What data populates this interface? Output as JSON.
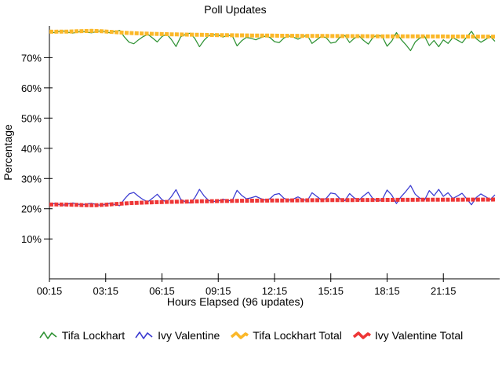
{
  "title": "Poll Updates",
  "chart_data": {
    "type": "line",
    "title": "Poll Updates",
    "xlabel": "Hours Elapsed (96 updates)",
    "ylabel": "Percentage",
    "grid": false,
    "legend_position": "bottom",
    "x_points": 96,
    "x_interval_minutes": 15,
    "x_tick_labels": [
      "00:15",
      "03:15",
      "06:15",
      "09:15",
      "12:15",
      "15:15",
      "18:15",
      "21:15"
    ],
    "x_tick_indices": [
      0,
      12,
      24,
      36,
      48,
      60,
      72,
      84
    ],
    "y_tick_labels": [
      "10%",
      "20%",
      "30%",
      "40%",
      "50%",
      "60%",
      "70%"
    ],
    "y_tick_values": [
      10,
      20,
      30,
      40,
      50,
      60,
      70
    ],
    "ylim": [
      -3.2,
      80.5
    ],
    "series": [
      {
        "id": "tifa-lockhart",
        "name": "Tifa Lockhart",
        "color": "#2f9234",
        "style": "thin",
        "values": [
          78.5,
          78.3,
          78.6,
          78.8,
          78.4,
          78.1,
          78.5,
          78.7,
          78.4,
          78.2,
          78.6,
          78.9,
          78.5,
          78.2,
          78.7,
          79.0,
          76.8,
          75.1,
          74.6,
          75.9,
          77.0,
          77.7,
          76.5,
          75.2,
          77.0,
          77.8,
          76.0,
          73.7,
          76.9,
          77.7,
          78.1,
          76.4,
          73.6,
          75.8,
          77.3,
          77.6,
          77.5,
          76.8,
          77.4,
          77.2,
          73.9,
          75.6,
          76.7,
          76.4,
          75.9,
          76.6,
          77.1,
          76.7,
          75.3,
          75.0,
          76.5,
          77.2,
          76.8,
          76.1,
          76.9,
          77.4,
          74.7,
          75.9,
          77.1,
          76.6,
          74.8,
          75.1,
          76.8,
          77.3,
          75.0,
          76.4,
          77.2,
          75.7,
          74.5,
          76.7,
          77.5,
          76.9,
          73.8,
          75.5,
          78.3,
          76.0,
          74.3,
          72.3,
          75.2,
          76.5,
          77.1,
          74.0,
          75.7,
          73.6,
          75.9,
          74.7,
          76.6,
          75.8,
          74.9,
          76.8,
          78.7,
          76.3,
          75.1,
          76.0,
          77.0,
          75.4
        ]
      },
      {
        "id": "ivy-valentine",
        "name": "Ivy Valentine",
        "color": "#3b3bd1",
        "style": "thin",
        "values": [
          21.5,
          21.7,
          21.4,
          21.2,
          21.6,
          21.9,
          21.5,
          21.3,
          21.6,
          21.8,
          21.4,
          21.1,
          21.5,
          21.8,
          21.3,
          21.0,
          23.2,
          24.9,
          25.4,
          24.1,
          23.0,
          22.3,
          23.5,
          24.8,
          23.0,
          22.2,
          24.0,
          26.3,
          23.1,
          22.3,
          21.9,
          23.6,
          26.4,
          24.2,
          22.7,
          22.4,
          22.5,
          23.2,
          22.6,
          22.8,
          26.1,
          24.4,
          23.3,
          23.6,
          24.1,
          23.4,
          22.9,
          23.3,
          24.7,
          25.0,
          23.5,
          22.8,
          23.2,
          23.9,
          23.1,
          22.6,
          25.3,
          24.1,
          22.9,
          23.4,
          25.2,
          24.9,
          23.2,
          22.7,
          25.0,
          23.6,
          22.8,
          24.3,
          25.5,
          23.3,
          22.5,
          23.1,
          26.2,
          24.5,
          21.7,
          24.0,
          25.7,
          27.7,
          24.8,
          23.5,
          22.9,
          26.0,
          24.3,
          26.4,
          24.1,
          25.3,
          23.4,
          24.2,
          25.1,
          23.2,
          21.3,
          23.7,
          24.9,
          24.0,
          23.0,
          24.6
        ]
      },
      {
        "id": "tifa-lockhart-total",
        "name": "Tifa Lockhart Total",
        "color": "#fbb829",
        "style": "thick",
        "values": [
          78.6,
          78.58,
          78.6,
          78.62,
          78.64,
          78.68,
          78.72,
          78.78,
          78.82,
          78.85,
          78.82,
          78.75,
          78.65,
          78.55,
          78.45,
          78.35,
          78.25,
          78.17,
          78.1,
          78.04,
          77.98,
          77.93,
          77.88,
          77.84,
          77.8,
          77.76,
          77.73,
          77.7,
          77.67,
          77.64,
          77.61,
          77.58,
          77.55,
          77.53,
          77.51,
          77.49,
          77.47,
          77.45,
          77.43,
          77.41,
          77.39,
          77.37,
          77.36,
          77.34,
          77.33,
          77.31,
          77.3,
          77.29,
          77.28,
          77.26,
          77.25,
          77.24,
          77.23,
          77.22,
          77.21,
          77.2,
          77.19,
          77.18,
          77.17,
          77.16,
          77.15,
          77.15,
          77.14,
          77.13,
          77.12,
          77.12,
          77.11,
          77.1,
          77.1,
          77.09,
          77.08,
          77.08,
          77.07,
          77.07,
          77.06,
          77.05,
          77.05,
          77.04,
          77.04,
          77.03,
          77.03,
          77.02,
          77.02,
          77.01,
          77.01,
          77.0,
          77.0,
          76.99,
          76.99,
          76.98,
          76.98,
          76.97,
          76.97,
          76.96,
          76.96,
          76.95
        ]
      },
      {
        "id": "ivy-valentine-total",
        "name": "Ivy Valentine Total",
        "color": "#ee3636",
        "style": "thick",
        "values": [
          21.4,
          21.42,
          21.4,
          21.38,
          21.36,
          21.32,
          21.28,
          21.22,
          21.18,
          21.15,
          21.18,
          21.25,
          21.35,
          21.45,
          21.55,
          21.65,
          21.75,
          21.83,
          21.9,
          21.96,
          22.02,
          22.07,
          22.12,
          22.16,
          22.2,
          22.24,
          22.27,
          22.3,
          22.33,
          22.36,
          22.39,
          22.42,
          22.45,
          22.47,
          22.49,
          22.51,
          22.53,
          22.55,
          22.57,
          22.59,
          22.61,
          22.63,
          22.64,
          22.66,
          22.67,
          22.69,
          22.7,
          22.71,
          22.72,
          22.74,
          22.75,
          22.76,
          22.77,
          22.78,
          22.79,
          22.8,
          22.81,
          22.82,
          22.83,
          22.84,
          22.85,
          22.85,
          22.86,
          22.87,
          22.88,
          22.88,
          22.89,
          22.9,
          22.9,
          22.91,
          22.92,
          22.92,
          22.93,
          22.93,
          22.94,
          22.95,
          22.95,
          22.96,
          22.96,
          22.97,
          22.97,
          22.98,
          22.98,
          22.99,
          22.99,
          23.0,
          23.0,
          23.01,
          23.01,
          23.02,
          23.02,
          23.03,
          23.03,
          23.04,
          23.04,
          23.05
        ]
      }
    ]
  }
}
